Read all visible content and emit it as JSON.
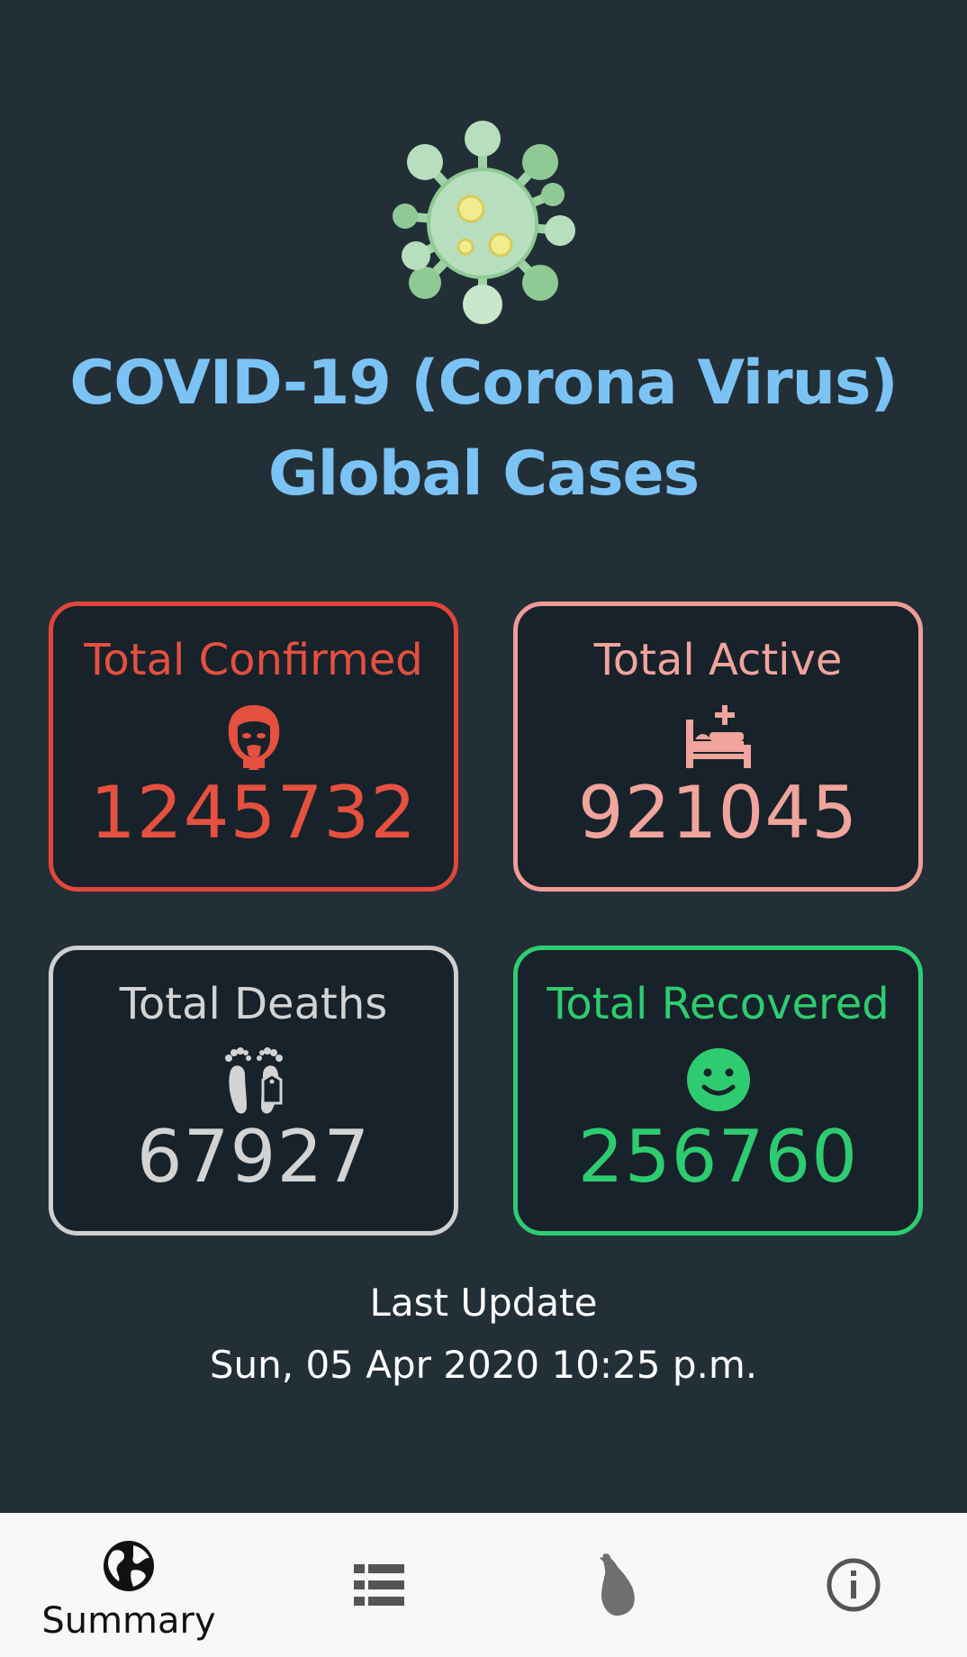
{
  "header": {
    "title_line1": "COVID-19 (Corona Virus)",
    "title_line2": "Global Cases"
  },
  "cards": {
    "confirmed": {
      "label": "Total Confirmed",
      "value": "1245732",
      "icon": "sick-person-mask-icon",
      "color": "#e5503f"
    },
    "active": {
      "label": "Total Active",
      "value": "921045",
      "icon": "hospital-bed-icon",
      "color": "#f0a49c"
    },
    "deaths": {
      "label": "Total Deaths",
      "value": "67927",
      "icon": "feet-tag-icon",
      "color": "#d3d3d3"
    },
    "recovered": {
      "label": "Total Recovered",
      "value": "256760",
      "icon": "smiley-face-icon",
      "color": "#2ecc71"
    }
  },
  "last_update": {
    "label": "Last Update",
    "value": "Sun, 05 Apr 2020 10:25 p.m."
  },
  "bottom_nav": {
    "items": [
      {
        "label": "Summary",
        "icon": "globe-icon",
        "active": true
      },
      {
        "label": "",
        "icon": "list-icon",
        "active": false
      },
      {
        "label": "",
        "icon": "sri-lanka-map-icon",
        "active": false
      },
      {
        "label": "",
        "icon": "info-icon",
        "active": false
      }
    ]
  },
  "colors": {
    "background": "#232f37",
    "card_background": "#18222a",
    "title": "#7cc3f5",
    "nav_background": "#f8f8f8"
  }
}
